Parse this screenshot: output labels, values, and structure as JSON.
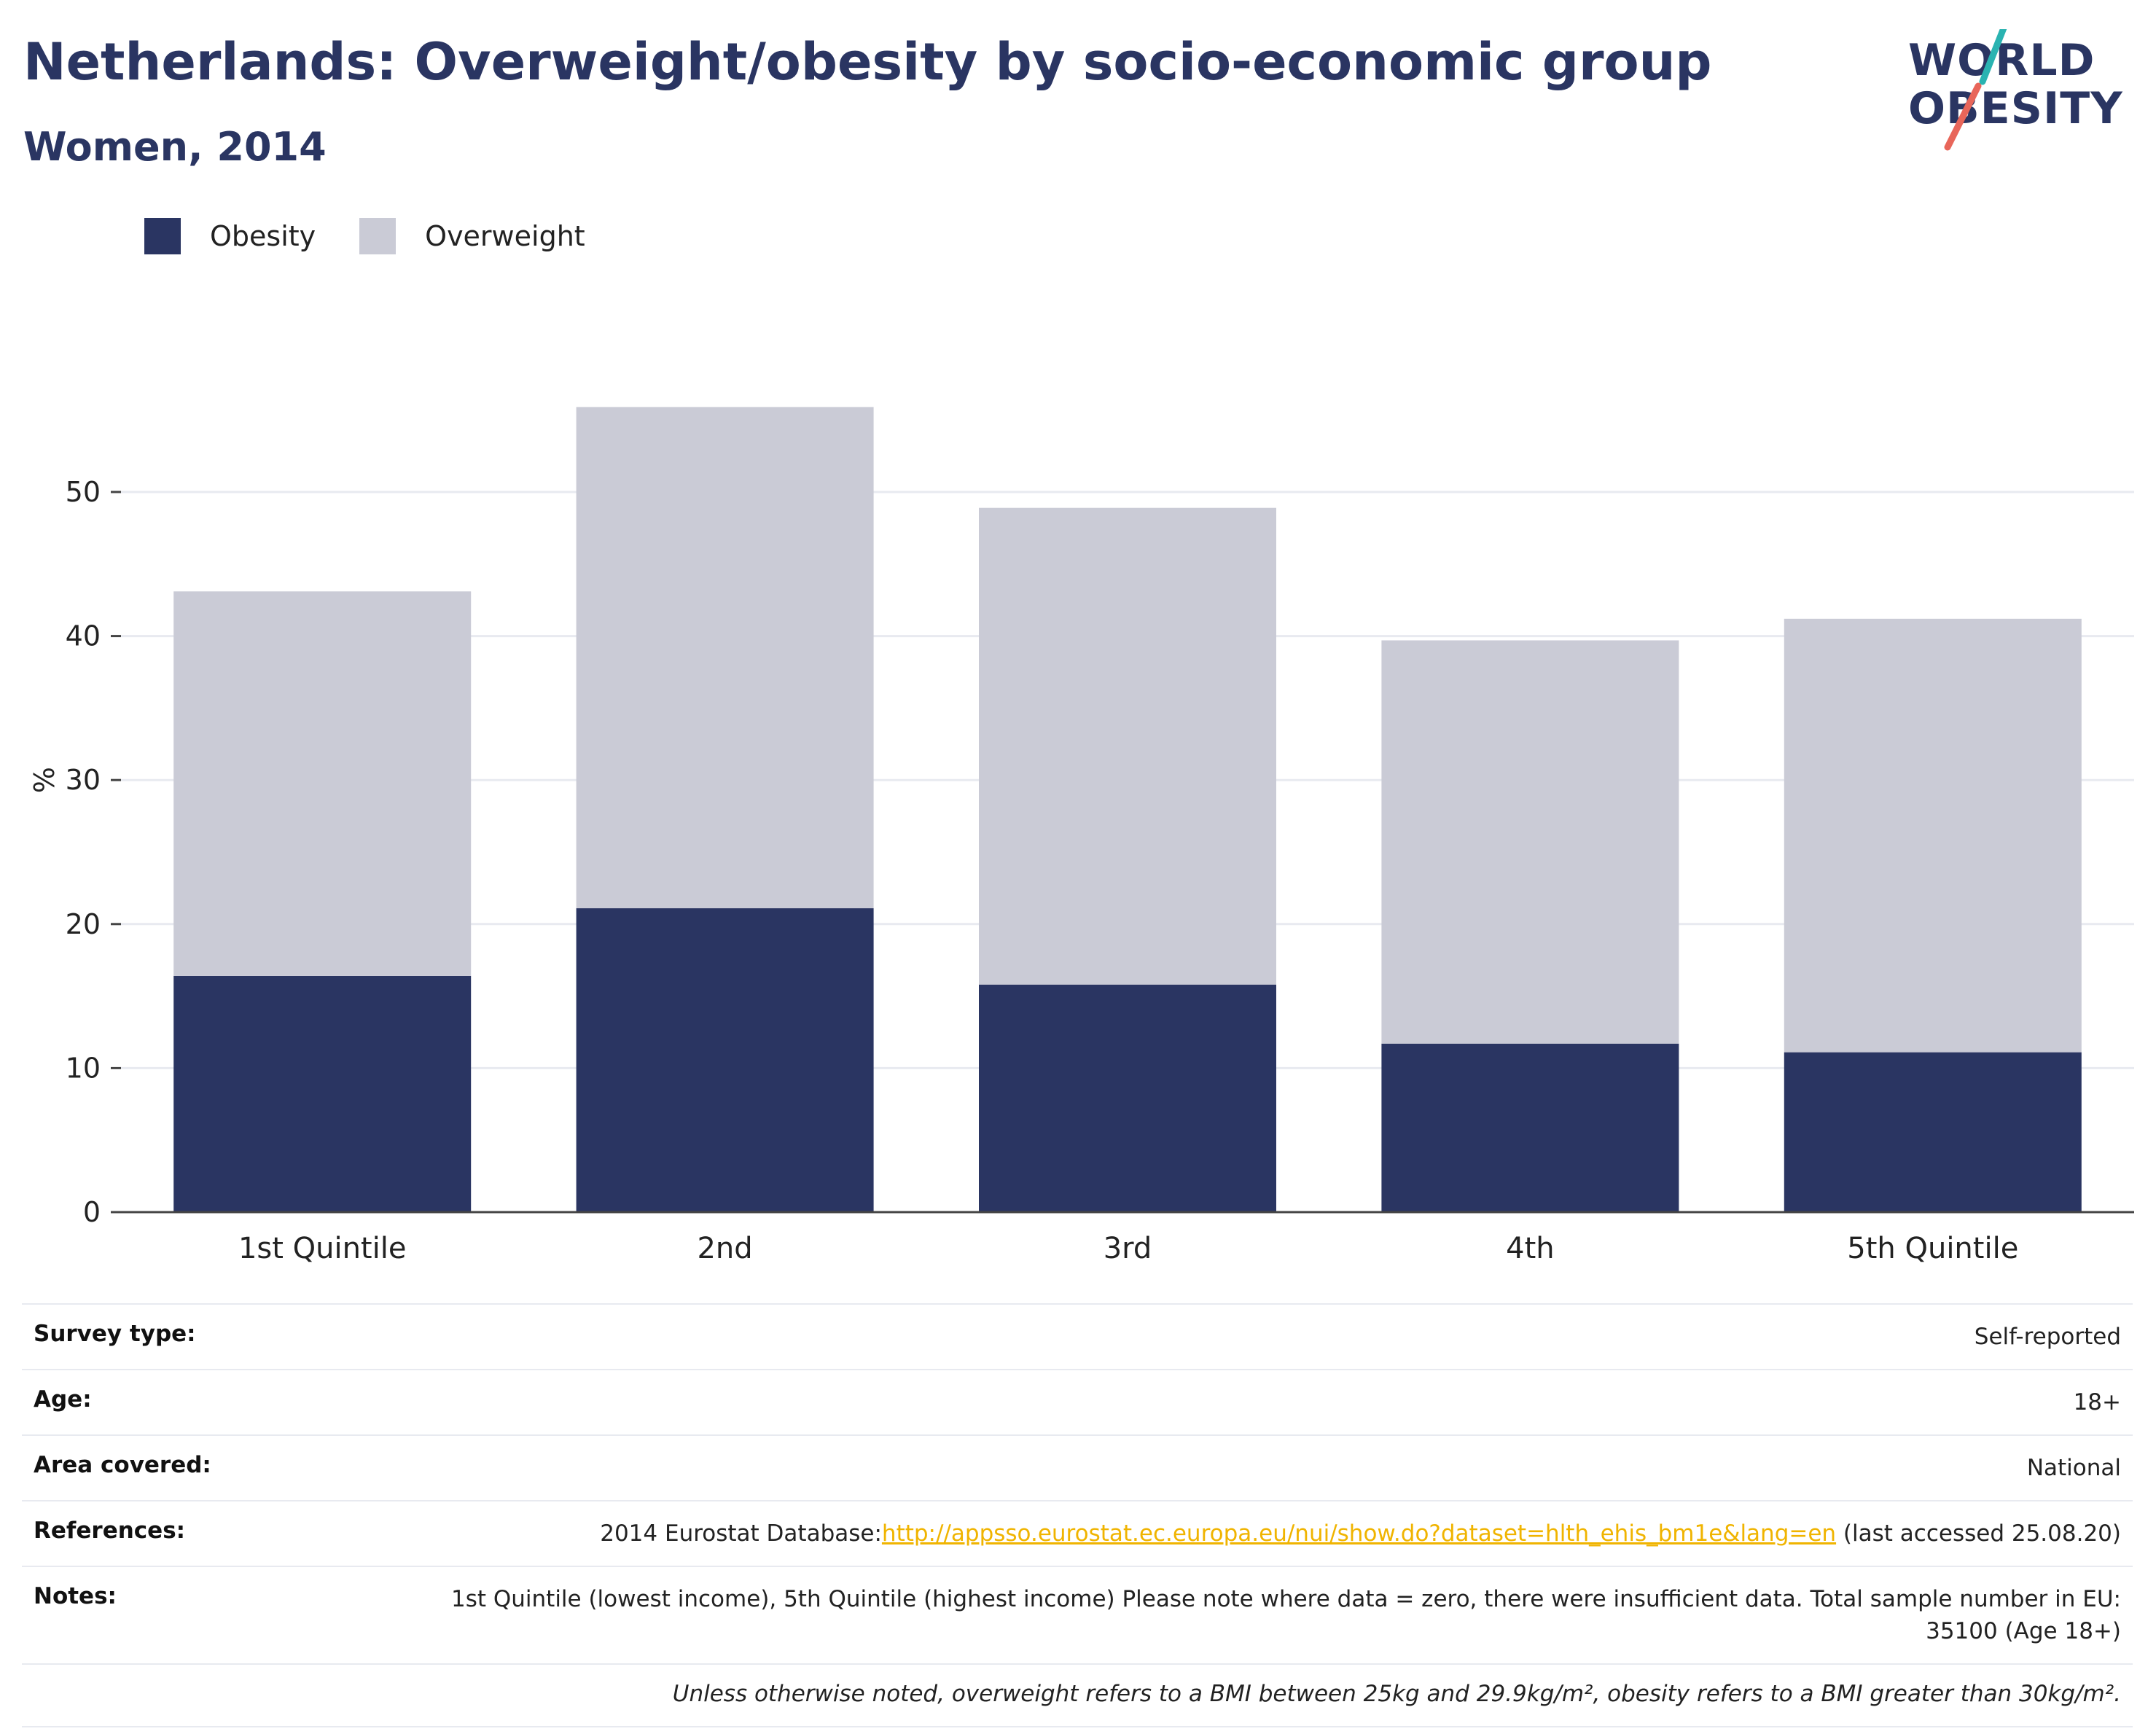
{
  "header": {
    "title": "Netherlands: Overweight/obesity by socio-economic group",
    "subtitle": "Women, 2014"
  },
  "logo": {
    "line1": "WORLD",
    "line2": "OBESITY",
    "icon": "world-obesity-logo",
    "slash_colors": [
      "#2ab3b1",
      "#e8665a"
    ]
  },
  "legend": {
    "items": [
      {
        "label": "Obesity",
        "color": "#2a3562"
      },
      {
        "label": "Overweight",
        "color": "#cacbd6"
      }
    ]
  },
  "chart_data": {
    "type": "bar",
    "stacked": true,
    "categories": [
      "1st Quintile",
      "2nd",
      "3rd",
      "4th",
      "5th Quintile"
    ],
    "series": [
      {
        "name": "Obesity",
        "values": [
          16.4,
          21.1,
          15.8,
          11.7,
          11.1
        ],
        "color": "#2a3562"
      },
      {
        "name": "Overweight",
        "values": [
          26.7,
          34.8,
          33.1,
          28.0,
          30.1
        ],
        "color": "#cacbd6"
      }
    ],
    "ylabel": "%",
    "yticks": [
      0,
      10,
      20,
      30,
      40,
      50
    ],
    "ylim": [
      0,
      60
    ],
    "grid": true,
    "legend_position": "top-left"
  },
  "info": {
    "rows": [
      {
        "label": "Survey type:",
        "value": "Self-reported"
      },
      {
        "label": "Age:",
        "value": "18+"
      },
      {
        "label": "Area covered:",
        "value": "National"
      },
      {
        "label": "References:",
        "value_prefix": "2014 Eurostat Database:",
        "link": "http://appsso.eurostat.ec.europa.eu/nui/show.do?dataset=hlth_ehis_bm1e&lang=en",
        "value_suffix": " (last accessed 25.08.20)"
      },
      {
        "label": "Notes:",
        "value": "1st Quintile (lowest income), 5th Quintile (highest income) Please note where data = zero, there were insufficient data. Total sample number in EU: 35100 (Age 18+)"
      }
    ],
    "footnote": "Unless otherwise noted, overweight refers to a BMI between 25kg and 29.9kg/m², obesity refers to a BMI greater than 30kg/m²."
  }
}
